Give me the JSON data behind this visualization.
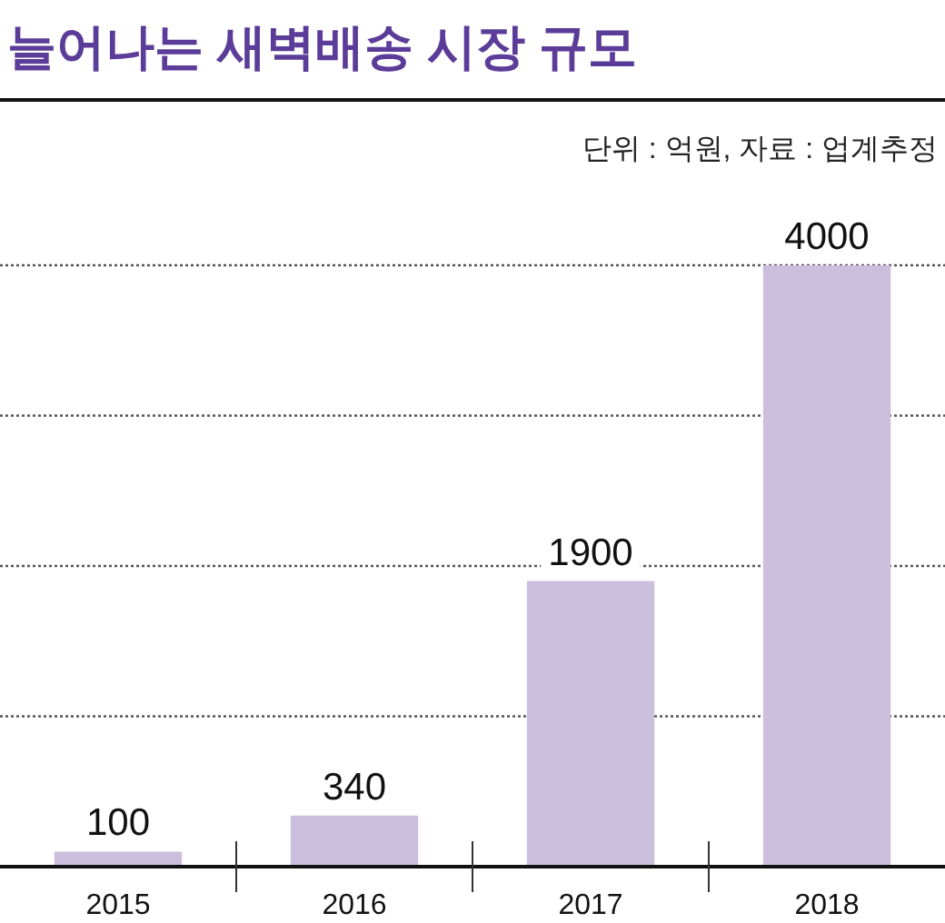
{
  "chart_data": {
    "type": "bar",
    "title": "늘어나는 새벽배송 시장 규모",
    "subtitle": "단위 : 억원, 자료 : 업계추정",
    "categories": [
      "2015",
      "2016",
      "2017",
      "2018"
    ],
    "values": [
      100,
      340,
      1900,
      4000
    ],
    "color": "#cbbfdd",
    "ylim": [
      0,
      5100
    ],
    "yticks": [
      {
        "value": 1000,
        "label": null
      },
      {
        "value": 2000,
        "label": null
      },
      {
        "value": 3000,
        "label": null
      },
      {
        "value": 4000,
        "label": null
      }
    ],
    "grid": "y",
    "data_labels": true,
    "tick_labels": "x"
  }
}
